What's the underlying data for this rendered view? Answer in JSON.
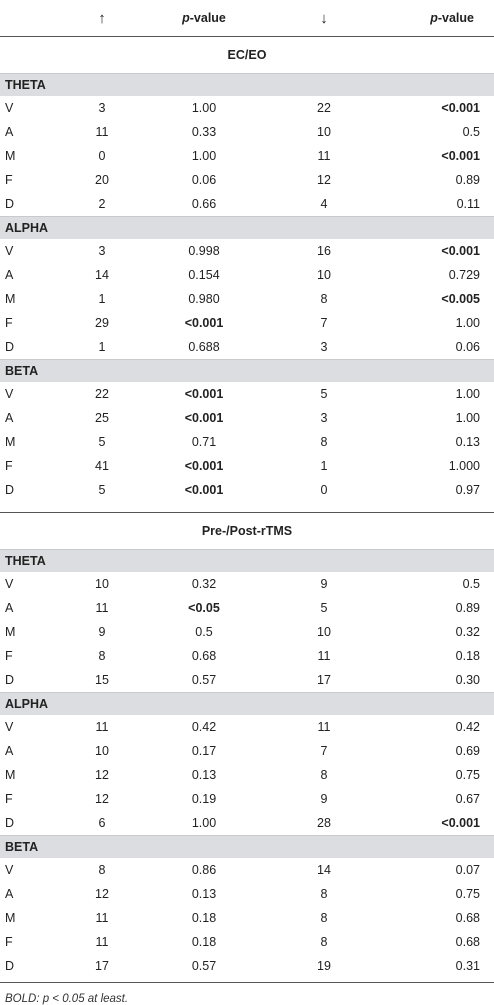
{
  "header": {
    "col_up": "↑",
    "col_p1_prefix": "p",
    "col_p1_suffix": "-value",
    "col_down": "↓",
    "col_p2_prefix": "p",
    "col_p2_suffix": "-value"
  },
  "sections": [
    {
      "title": "EC/EO",
      "groups": [
        {
          "band": "THETA",
          "rows": [
            {
              "label": "V",
              "up": "3",
              "p1": "1.00",
              "p1_bold": false,
              "down": "22",
              "p2": "<0.001",
              "p2_bold": true
            },
            {
              "label": "A",
              "up": "11",
              "p1": "0.33",
              "p1_bold": false,
              "down": "10",
              "p2": "0.5",
              "p2_bold": false
            },
            {
              "label": "M",
              "up": "0",
              "p1": "1.00",
              "p1_bold": false,
              "down": "11",
              "p2": "<0.001",
              "p2_bold": true
            },
            {
              "label": "F",
              "up": "20",
              "p1": "0.06",
              "p1_bold": false,
              "down": "12",
              "p2": "0.89",
              "p2_bold": false
            },
            {
              "label": "D",
              "up": "2",
              "p1": "0.66",
              "p1_bold": false,
              "down": "4",
              "p2": "0.11",
              "p2_bold": false
            }
          ]
        },
        {
          "band": "ALPHA",
          "rows": [
            {
              "label": "V",
              "up": "3",
              "p1": "0.998",
              "p1_bold": false,
              "down": "16",
              "p2": "<0.001",
              "p2_bold": true
            },
            {
              "label": "A",
              "up": "14",
              "p1": "0.154",
              "p1_bold": false,
              "down": "10",
              "p2": "0.729",
              "p2_bold": false
            },
            {
              "label": "M",
              "up": "1",
              "p1": "0.980",
              "p1_bold": false,
              "down": "8",
              "p2": "<0.005",
              "p2_bold": true
            },
            {
              "label": "F",
              "up": "29",
              "p1": "<0.001",
              "p1_bold": true,
              "down": "7",
              "p2": "1.00",
              "p2_bold": false
            },
            {
              "label": "D",
              "up": "1",
              "p1": "0.688",
              "p1_bold": false,
              "down": "3",
              "p2": "0.06",
              "p2_bold": false
            }
          ]
        },
        {
          "band": "BETA",
          "rows": [
            {
              "label": "V",
              "up": "22",
              "p1": "<0.001",
              "p1_bold": true,
              "down": "5",
              "p2": "1.00",
              "p2_bold": false
            },
            {
              "label": "A",
              "up": "25",
              "p1": "<0.001",
              "p1_bold": true,
              "down": "3",
              "p2": "1.00",
              "p2_bold": false
            },
            {
              "label": "M",
              "up": "5",
              "p1": "0.71",
              "p1_bold": false,
              "down": "8",
              "p2": "0.13",
              "p2_bold": false
            },
            {
              "label": "F",
              "up": "41",
              "p1": "<0.001",
              "p1_bold": true,
              "down": "1",
              "p2": "1.000",
              "p2_bold": false
            },
            {
              "label": "D",
              "up": "5",
              "p1": "<0.001",
              "p1_bold": true,
              "down": "0",
              "p2": "0.97",
              "p2_bold": false
            }
          ]
        }
      ]
    },
    {
      "title": "Pre-/Post-rTMS",
      "groups": [
        {
          "band": "THETA",
          "rows": [
            {
              "label": "V",
              "up": "10",
              "p1": "0.32",
              "p1_bold": false,
              "down": "9",
              "p2": "0.5",
              "p2_bold": false
            },
            {
              "label": "A",
              "up": "11",
              "p1": "<0.05",
              "p1_bold": true,
              "down": "5",
              "p2": "0.89",
              "p2_bold": false
            },
            {
              "label": "M",
              "up": "9",
              "p1": "0.5",
              "p1_bold": false,
              "down": "10",
              "p2": "0.32",
              "p2_bold": false
            },
            {
              "label": "F",
              "up": "8",
              "p1": "0.68",
              "p1_bold": false,
              "down": "11",
              "p2": "0.18",
              "p2_bold": false
            },
            {
              "label": "D",
              "up": "15",
              "p1": "0.57",
              "p1_bold": false,
              "down": "17",
              "p2": "0.30",
              "p2_bold": false
            }
          ]
        },
        {
          "band": "ALPHA",
          "rows": [
            {
              "label": "V",
              "up": "11",
              "p1": "0.42",
              "p1_bold": false,
              "down": "11",
              "p2": "0.42",
              "p2_bold": false
            },
            {
              "label": "A",
              "up": "10",
              "p1": "0.17",
              "p1_bold": false,
              "down": "7",
              "p2": "0.69",
              "p2_bold": false
            },
            {
              "label": "M",
              "up": "12",
              "p1": "0.13",
              "p1_bold": false,
              "down": "8",
              "p2": "0.75",
              "p2_bold": false
            },
            {
              "label": "F",
              "up": "12",
              "p1": "0.19",
              "p1_bold": false,
              "down": "9",
              "p2": "0.67",
              "p2_bold": false
            },
            {
              "label": "D",
              "up": "6",
              "p1": "1.00",
              "p1_bold": false,
              "down": "28",
              "p2": "<0.001",
              "p2_bold": true
            }
          ]
        },
        {
          "band": "BETA",
          "rows": [
            {
              "label": "V",
              "up": "8",
              "p1": "0.86",
              "p1_bold": false,
              "down": "14",
              "p2": "0.07",
              "p2_bold": false
            },
            {
              "label": "A",
              "up": "12",
              "p1": "0.13",
              "p1_bold": false,
              "down": "8",
              "p2": "0.75",
              "p2_bold": false
            },
            {
              "label": "M",
              "up": "11",
              "p1": "0.18",
              "p1_bold": false,
              "down": "8",
              "p2": "0.68",
              "p2_bold": false
            },
            {
              "label": "F",
              "up": "11",
              "p1": "0.18",
              "p1_bold": false,
              "down": "8",
              "p2": "0.68",
              "p2_bold": false
            },
            {
              "label": "D",
              "up": "17",
              "p1": "0.57",
              "p1_bold": false,
              "down": "19",
              "p2": "0.31",
              "p2_bold": false
            }
          ]
        }
      ]
    }
  ],
  "footnote": "BOLD: p < 0.05 at least.",
  "colors": {
    "band_bg": "#dcdde0",
    "rule": "#555555"
  }
}
